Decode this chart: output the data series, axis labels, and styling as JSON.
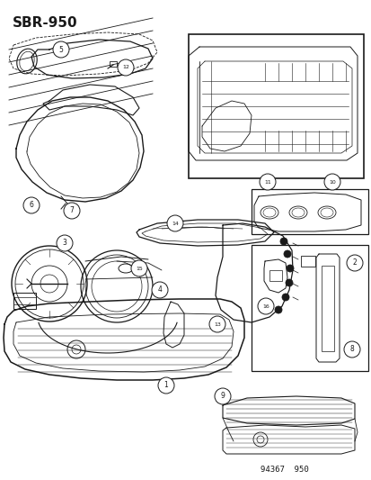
{
  "title": "SBR-950",
  "footer": "94367  950",
  "bg_color": "#ffffff",
  "line_color": "#1a1a1a",
  "title_fontsize": 11,
  "footer_fontsize": 6.5,
  "figsize": [
    4.14,
    5.33
  ],
  "dpi": 100
}
